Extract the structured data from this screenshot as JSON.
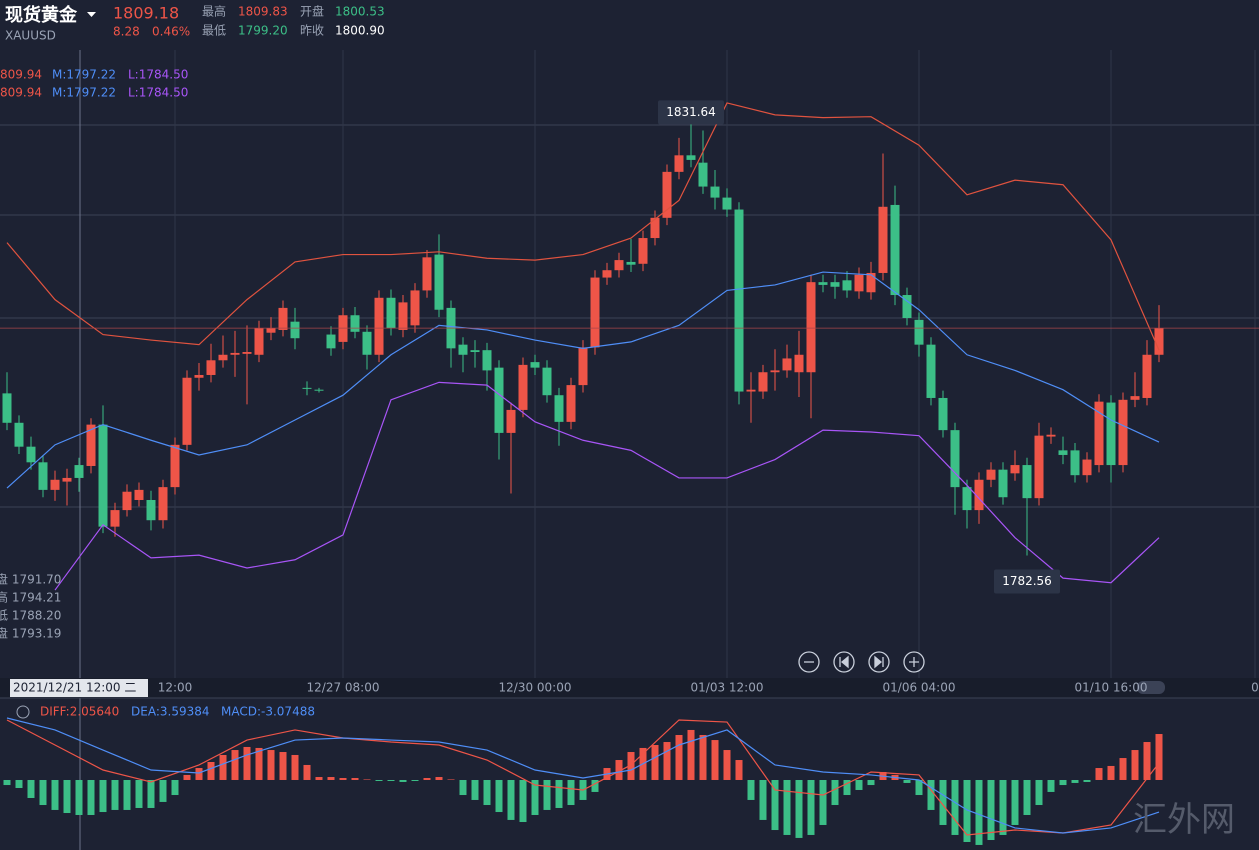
{
  "header": {
    "name": "现货黄金",
    "symbol": "XAUUSD",
    "price": "1809.18",
    "change": "8.28",
    "change_pct": "0.46%",
    "stats": [
      {
        "label": "最高",
        "value": "1809.83"
      },
      {
        "label": "开盘",
        "value": "1800.53"
      },
      {
        "label": "最低",
        "value": "1799.20"
      },
      {
        "label": "昨收",
        "value": "1800.90"
      }
    ]
  },
  "band_legend": [
    [
      "809.94",
      "M:1797.22",
      "L:1784.50"
    ],
    [
      "809.94",
      "M:1797.22",
      "L:1784.50"
    ]
  ],
  "crosshair": {
    "label": "2021/12/21 12:00 二",
    "info": [
      "盘 1791.70",
      "高 1794.21",
      "低 1788.20",
      "盘 1793.19"
    ]
  },
  "macd_legend": [
    "DIFF:2.05640",
    "DEA:3.59384",
    "MACD:-3.07488"
  ],
  "watermark": "汇外网",
  "chart_data": {
    "type": "candlestick",
    "ylim": [
      1769.56,
      1836.47
    ],
    "up_color": "#ee5548",
    "down_color": "#3cbf87",
    "open": [
      1800.2,
      1797.0,
      1794.4,
      1792.7,
      1789.7,
      1790.6,
      1792.4,
      1792.3,
      1796.8,
      1785.7,
      1787.5,
      1788.6,
      1788.6,
      1786.4,
      1790.0,
      1794.6,
      1801.9,
      1802.2,
      1803.8,
      1804.4,
      1804.5,
      1804.4,
      1806.8,
      1807.1,
      1808.0,
      1800.8,
      1800.6,
      1806.6,
      1805.8,
      1808.7,
      1806.9,
      1804.4,
      1810.6,
      1807.1,
      1807.6,
      1811.4,
      1815.3,
      1809.5,
      1805.5,
      1804.9,
      1804.9,
      1803.0,
      1795.9,
      1798.4,
      1803.6,
      1803.0,
      1800.0,
      1797.1,
      1801.1,
      1805.2,
      1812.8,
      1813.6,
      1814.5,
      1814.3,
      1817.1,
      1819.3,
      1824.3,
      1826.1,
      1825.3,
      1822.7,
      1821.5,
      1820.2,
      1800.4,
      1800.4,
      1802.5,
      1802.7,
      1802.5,
      1802.5,
      1812.3,
      1812.3,
      1812.5,
      1811.3,
      1811.2,
      1813.3,
      1820.7,
      1810.9,
      1808.2,
      1805.5,
      1799.7,
      1796.2,
      1790.0,
      1787.5,
      1790.8,
      1791.9,
      1791.5,
      1792.4,
      1788.8,
      1795.5,
      1794.0,
      1794.0,
      1791.3,
      1792.4,
      1799.2,
      1792.4,
      1799.5,
      1799.7,
      1804.4
    ],
    "high": [
      1802.5,
      1797.8,
      1795.5,
      1793.5,
      1791.8,
      1792.0,
      1793.2,
      1797.5,
      1798.9,
      1788.3,
      1790.3,
      1790.5,
      1789.6,
      1790.8,
      1795.4,
      1802.7,
      1803.5,
      1805.6,
      1806.5,
      1807.0,
      1807.6,
      1808.1,
      1808.5,
      1810.3,
      1809.5,
      1801.5,
      1800.8,
      1807.5,
      1809.5,
      1809.6,
      1807.6,
      1811.4,
      1811.5,
      1810.9,
      1812.2,
      1815.8,
      1817.5,
      1810.3,
      1806.3,
      1806.0,
      1805.7,
      1803.8,
      1799.2,
      1804.1,
      1804.4,
      1803.8,
      1800.8,
      1801.9,
      1806.0,
      1813.6,
      1814.4,
      1815.5,
      1817.0,
      1817.9,
      1820.1,
      1825.1,
      1828.0,
      1831.64,
      1828.8,
      1824.5,
      1822.5,
      1821.0,
      1802.5,
      1803.3,
      1805.0,
      1805.5,
      1807.0,
      1813.1,
      1813.1,
      1813.1,
      1813.5,
      1813.9,
      1814.5,
      1826.3,
      1822.8,
      1811.7,
      1809.0,
      1806.3,
      1800.5,
      1797.0,
      1790.8,
      1791.6,
      1792.7,
      1792.7,
      1794.0,
      1793.2,
      1797.0,
      1796.5,
      1795.5,
      1794.8,
      1793.8,
      1800.1,
      1800.0,
      1800.3,
      1802.5,
      1806.0,
      1809.8
    ],
    "low": [
      1796.2,
      1793.6,
      1791.9,
      1788.9,
      1788.5,
      1788.0,
      1789.5,
      1791.5,
      1785.0,
      1784.6,
      1786.8,
      1787.9,
      1785.3,
      1785.5,
      1789.2,
      1794.0,
      1800.5,
      1801.4,
      1803.0,
      1802.0,
      1799.0,
      1803.6,
      1806.0,
      1806.4,
      1805.0,
      1800.0,
      1800.3,
      1804.3,
      1805.0,
      1806.2,
      1802.8,
      1803.6,
      1806.5,
      1806.3,
      1806.8,
      1810.6,
      1808.5,
      1803.0,
      1802.5,
      1803.0,
      1800.5,
      1793.0,
      1789.3,
      1797.6,
      1802.2,
      1799.2,
      1794.5,
      1796.3,
      1800.3,
      1804.4,
      1812.0,
      1812.8,
      1813.4,
      1813.5,
      1816.3,
      1818.5,
      1823.5,
      1824.8,
      1821.9,
      1820.2,
      1819.4,
      1799.0,
      1797.0,
      1799.6,
      1800.5,
      1801.9,
      1799.8,
      1797.5,
      1811.2,
      1810.5,
      1810.6,
      1810.5,
      1810.4,
      1812.5,
      1809.8,
      1807.6,
      1804.2,
      1798.9,
      1795.4,
      1787.0,
      1785.5,
      1786.0,
      1790.0,
      1788.1,
      1790.7,
      1782.56,
      1788.0,
      1794.7,
      1792.5,
      1790.5,
      1790.5,
      1791.6,
      1790.5,
      1791.6,
      1798.7,
      1798.9,
      1803.6
    ],
    "close": [
      1797.0,
      1794.4,
      1792.7,
      1789.7,
      1790.8,
      1791.0,
      1791.0,
      1796.8,
      1785.7,
      1787.5,
      1789.5,
      1789.7,
      1786.4,
      1790.0,
      1794.6,
      1801.9,
      1802.2,
      1803.8,
      1804.4,
      1804.6,
      1804.7,
      1807.3,
      1807.3,
      1809.5,
      1806.2,
      1800.7,
      1800.5,
      1805.1,
      1808.7,
      1806.9,
      1804.4,
      1810.6,
      1807.3,
      1810.1,
      1811.4,
      1815.0,
      1809.3,
      1805.1,
      1804.4,
      1804.7,
      1802.7,
      1795.9,
      1798.4,
      1803.3,
      1803.0,
      1800.0,
      1797.1,
      1801.1,
      1805.2,
      1812.8,
      1813.6,
      1814.7,
      1814.2,
      1817.1,
      1819.3,
      1824.3,
      1826.1,
      1825.6,
      1822.7,
      1821.5,
      1820.2,
      1800.4,
      1800.6,
      1802.5,
      1802.7,
      1804.0,
      1804.4,
      1812.3,
      1812.0,
      1811.8,
      1811.4,
      1813.1,
      1813.3,
      1820.5,
      1810.9,
      1808.4,
      1805.5,
      1799.7,
      1796.2,
      1790.0,
      1787.5,
      1790.8,
      1791.9,
      1788.9,
      1792.4,
      1788.8,
      1795.6,
      1795.7,
      1793.5,
      1791.3,
      1793.0,
      1799.3,
      1792.4,
      1799.5,
      1799.9,
      1804.4,
      1807.3
    ],
    "xticks": [
      {
        "value": 14,
        "label": "12:00"
      },
      {
        "value": 28,
        "label": "12/27 08:00"
      },
      {
        "value": 44,
        "label": "12/30 00:00"
      },
      {
        "value": 60,
        "label": "01/03 12:00"
      },
      {
        "value": 76,
        "label": "01/06 04:00"
      },
      {
        "value": 92,
        "label": "01/10 16:00"
      },
      {
        "value": 104,
        "label": "0"
      }
    ],
    "bands": {
      "x": [
        0,
        4,
        8,
        12,
        16,
        20,
        24,
        28,
        32,
        36,
        40,
        44,
        48,
        52,
        56,
        60,
        64,
        68,
        72,
        76,
        80,
        84,
        88,
        92,
        96
      ],
      "series": [
        {
          "color": "#e0533f",
          "values": [
            1816.6,
            1810.4,
            1806.6,
            1806.0,
            1805.5,
            1810.4,
            1814.5,
            1815.3,
            1815.3,
            1815.6,
            1814.9,
            1814.7,
            1815.3,
            1817.1,
            1821.2,
            1831.8,
            1830.5,
            1830.2,
            1830.3,
            1827.2,
            1821.8,
            1823.4,
            1822.9,
            1816.9,
            1804.9
          ]
        },
        {
          "color": "#4f8ef7",
          "values": [
            1789.9,
            1794.6,
            1796.8,
            1795.1,
            1793.5,
            1794.6,
            1797.3,
            1800.0,
            1804.4,
            1807.6,
            1807.1,
            1806.0,
            1805.1,
            1805.8,
            1807.6,
            1811.4,
            1812.0,
            1813.4,
            1813.1,
            1809.3,
            1804.4,
            1802.7,
            1800.6,
            1797.3,
            1794.9
          ]
        },
        {
          "color": "#a855f7",
          "values": [
            null,
            1778.8,
            1785.9,
            1782.3,
            1782.6,
            1781.2,
            1782.1,
            1784.8,
            1799.5,
            1801.4,
            1801.1,
            1797.1,
            1795.1,
            1794.0,
            1791.0,
            1791.0,
            1793.0,
            1796.2,
            1796.0,
            1795.6,
            1790.2,
            1784.5,
            1780.1,
            1779.6,
            1784.5
          ]
        }
      ]
    },
    "macd": {
      "ylim": [
        -7.78,
        8.89
      ],
      "histogram": [
        -0.56,
        -0.89,
        -2,
        -2.78,
        -3.33,
        -3.67,
        -3.89,
        -3.89,
        -3.56,
        -3.33,
        -3.33,
        -3.11,
        -3.11,
        -2.44,
        -1.67,
        0.56,
        1.33,
        2,
        2.78,
        3.33,
        3.67,
        3.56,
        3.33,
        3.11,
        2.78,
        1.67,
        0.33,
        0.33,
        0.22,
        0.22,
        0.06,
        -0.11,
        -0.11,
        -0.22,
        -0.11,
        0.22,
        0.33,
        0.06,
        -1.67,
        -2.22,
        -2.78,
        -3.56,
        -4.44,
        -4.67,
        -3.89,
        -3.33,
        -3.11,
        -2.78,
        -2.22,
        -1.33,
        1.33,
        2.22,
        3.11,
        3.56,
        3.89,
        4.22,
        5,
        5.56,
        5,
        4.44,
        3.33,
        2.22,
        -2.22,
        -4.44,
        -5.56,
        -6.11,
        -6.44,
        -6.11,
        -5,
        -2.78,
        -1.67,
        -1.11,
        -0.56,
        0.89,
        0.56,
        -0.33,
        -1.67,
        -3.33,
        -5,
        -6.11,
        -6.89,
        -7.22,
        -6.67,
        -6.11,
        -5,
        -3.89,
        -2.78,
        -1.33,
        -0.56,
        -0.33,
        -0.22,
        1.33,
        1.56,
        2.44,
        3.33,
        4.22,
        5.11
      ],
      "x": [
        0,
        4,
        8,
        12,
        16,
        20,
        24,
        28,
        32,
        36,
        40,
        44,
        48,
        52,
        56,
        60,
        64,
        68,
        72,
        76,
        80,
        84,
        88,
        92,
        96
      ],
      "lines": [
        {
          "color": "#ee5548",
          "values": [
            6.67,
            3.89,
            1.11,
            -0.22,
            1.67,
            4.44,
            5.56,
            4.67,
            4.22,
            3.89,
            2.22,
            -0.56,
            -1.11,
            1.67,
            6.67,
            6.44,
            -1.11,
            -1.67,
            0.89,
            0.56,
            -6.11,
            -5.56,
            -5.89,
            -5,
            1.89
          ]
        },
        {
          "color": "#4f8ef7",
          "values": [
            6.89,
            5.56,
            3.33,
            1.11,
            0.78,
            2.78,
            4.44,
            4.67,
            4.44,
            4.22,
            3.33,
            1.11,
            0.22,
            1.11,
            3.89,
            5.56,
            1.67,
            0.89,
            0.56,
            0,
            -3.33,
            -5.33,
            -5.89,
            -5.33,
            -3.56
          ]
        }
      ]
    }
  }
}
